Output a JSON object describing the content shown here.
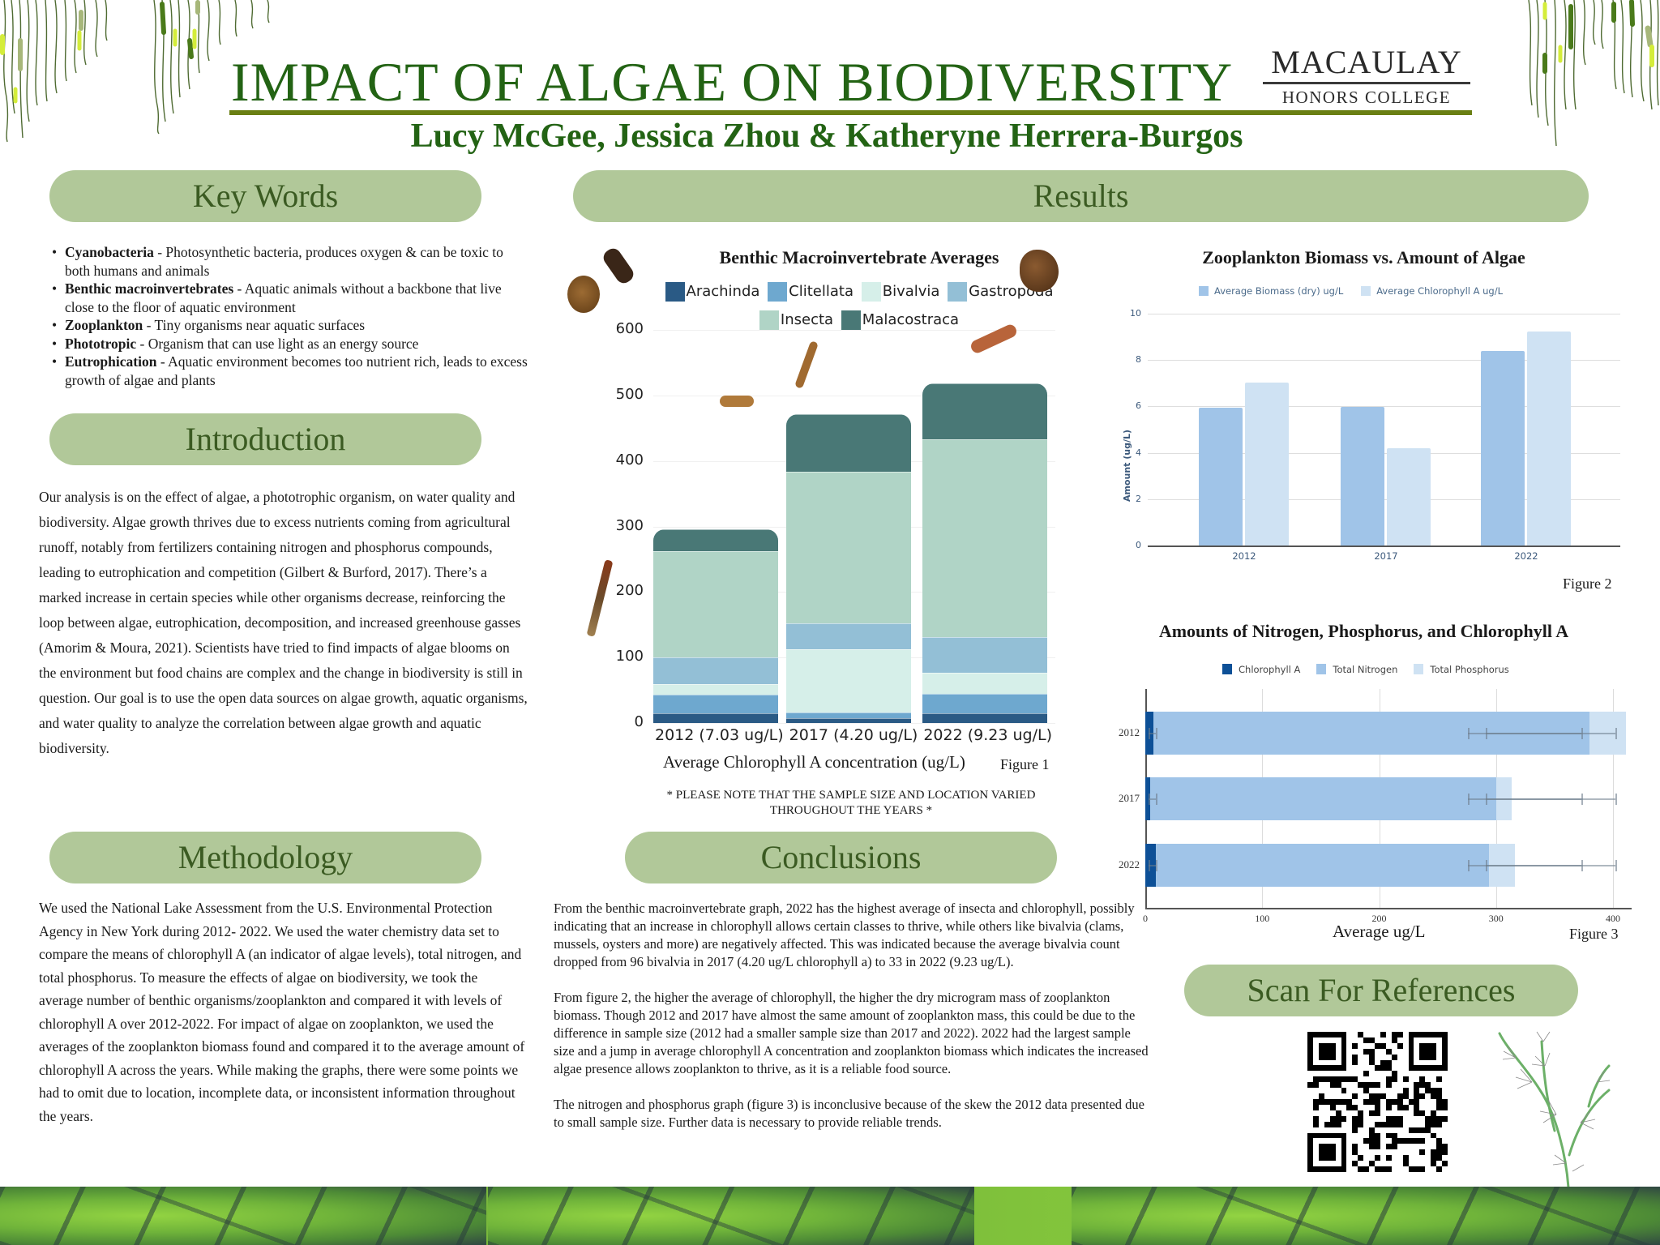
{
  "header": {
    "title": "IMPACT OF ALGAE ON BIODIVERSITY",
    "authors": "Lucy McGee, Jessica Zhou & Katheryne Herrera-Burgos",
    "logo_line1": "MACAULAY",
    "logo_line2": "HONORS COLLEGE"
  },
  "colors": {
    "title_green": "#236314",
    "rule_olive": "#6a7f13",
    "pill_bg": "#b1c899",
    "pill_text": "#3b5b22"
  },
  "sections": {
    "key_words": {
      "heading": "Key Words",
      "items": [
        {
          "term": "Cyanobacteria",
          "definition": " - Photosynthetic bacteria, produces oxygen & can be toxic to both humans and animals"
        },
        {
          "term": "Benthic macroinvertebrates",
          "definition": " - Aquatic animals without a backbone that live close to the floor of aquatic environment"
        },
        {
          "term": "Zooplankton",
          "definition": " - Tiny organisms near aquatic surfaces"
        },
        {
          "term": "Phototropic",
          "definition": " - Organism that can use light as an energy source"
        },
        {
          "term": "Eutrophication",
          "definition": " - Aquatic environment becomes too nutrient rich, leads to excess growth of algae and plants"
        }
      ]
    },
    "introduction": {
      "heading": "Introduction",
      "text": "Our analysis is on the effect of algae, a phototrophic organism, on water quality and biodiversity. Algae growth thrives due to excess nutrients coming from agricultural runoff, notably from fertilizers containing nitrogen and phosphorus compounds, leading to eutrophication and competition (Gilbert & Burford, 2017). There’s a marked increase in certain species while other organisms decrease, reinforcing the loop between algae, eutrophication, decomposition, and increased greenhouse gasses (Amorim & Moura, 2021). Scientists have tried to find impacts of algae blooms on the environment but food chains are complex and the change in biodiversity is still in question. Our goal is to use the open data sources on algae growth, aquatic organisms, and water quality to analyze the correlation between algae growth and aquatic biodiversity."
    },
    "methodology": {
      "heading": "Methodology",
      "text": "We used the National Lake Assessment from the U.S. Environmental Protection Agency in New York during 2012- 2022. We used the water chemistry data set to compare the means of chlorophyll A (an indicator of algae levels), total nitrogen, and total phosphorus. To measure the effects of algae on biodiversity, we took the average number of benthic organisms/zooplankton and compared it with levels of chlorophyll A over 2012-2022. For impact of algae on zooplankton, we used the averages of the zooplankton biomass found and compared it to the average amount of chlorophyll A across the years. While making the graphs, there were some points we had to omit due to location, incomplete data, or inconsistent information throughout the years."
    },
    "results": {
      "heading": "Results",
      "note": "* PLEASE NOTE THAT THE SAMPLE SIZE AND LOCATION VARIED THROUGHOUT THE YEARS *"
    },
    "conclusions": {
      "heading": "Conclusions",
      "paragraphs": [
        "From the benthic macroinvertebrate graph, 2022 has the highest average of insecta and chlorophyll, possibly indicating that an increase in chlorophyll allows certain classes to thrive, while others like bivalvia (clams, mussels, oysters and more) are negatively affected. This was indicated because the average bivalvia count dropped from 96 bivalvia in 2017 (4.20 ug/L chlorophyll a) to 33 in 2022 (9.23 ug/L).",
        "From figure 2, the higher the average of chlorophyll, the higher the dry microgram mass of zooplankton biomass. Though 2012 and 2017 have almost the same amount of zooplankton mass, this could be due to the difference in sample size (2012 had a smaller sample size than 2017 and 2022). 2022 had the largest sample size and a jump in average chlorophyll A concentration and zooplankton biomass which indicates the increased algae presence allows zooplankton to thrive, as it is a reliable food source.",
        "The nitrogen and phosphorus graph (figure 3) is inconclusive because of the skew the 2012 data presented due to small sample size. Further data is necessary to provide reliable trends."
      ]
    },
    "references": {
      "heading": "Scan For References",
      "qr_icon": "qr-code-icon"
    }
  },
  "chart_data": [
    {
      "type": "bar",
      "stacked": true,
      "title": "Benthic Macroinvertebrate Averages",
      "xlabel": "Average Chlorophyll A concentration (ug/L)",
      "ylabel": "",
      "figure_label": "Figure 1",
      "categories": [
        "2012 (7.03 ug/L)",
        "2017 (4.20 ug/L)",
        "2022 (9.23 ug/L)"
      ],
      "ylim": [
        0,
        600
      ],
      "yticks": [
        0,
        100,
        200,
        300,
        400,
        500,
        600
      ],
      "grid": true,
      "legend_position": "top",
      "series": [
        {
          "name": "Arachinda",
          "color": "#2a5a85",
          "values": [
            15,
            7,
            15
          ]
        },
        {
          "name": "Clitellata",
          "color": "#6ea8cf",
          "values": [
            28,
            9,
            29
          ]
        },
        {
          "name": "Bivalvia",
          "color": "#d6efe9",
          "values": [
            16,
            96,
            33
          ]
        },
        {
          "name": "Gastropoda",
          "color": "#93bfd6",
          "values": [
            41,
            40,
            54
          ]
        },
        {
          "name": "Insecta",
          "color": "#b0d4c6",
          "values": [
            162,
            232,
            302
          ]
        },
        {
          "name": "Malacostraca",
          "color": "#497876",
          "values": [
            34,
            87,
            85
          ]
        }
      ],
      "totals": [
        296,
        471,
        518
      ]
    },
    {
      "type": "bar",
      "title": "Zooplankton Biomass vs. Amount of Algae",
      "xlabel": "",
      "ylabel": "Amount (ug/L)",
      "figure_label": "Figure 2",
      "categories": [
        "2012",
        "2017",
        "2022"
      ],
      "ylim": [
        0,
        10
      ],
      "yticks": [
        0,
        2,
        4,
        6,
        8,
        10
      ],
      "grid": true,
      "legend_position": "top",
      "series": [
        {
          "name": "Average Biomass (dry) ug/L",
          "color": "#a0c4e8",
          "values": [
            5.93,
            5.99,
            8.4
          ]
        },
        {
          "name": "Average Chlorophyll A ug/L",
          "color": "#cfe2f3",
          "values": [
            7.03,
            4.2,
            9.23
          ]
        }
      ]
    },
    {
      "type": "bar",
      "orientation": "horizontal",
      "stacked": true,
      "title": "Amounts of Nitrogen, Phosphorus, and Chlorophyll A",
      "xlabel": "Average ug/L",
      "ylabel": "",
      "figure_label": "Figure 3",
      "categories": [
        "2012",
        "2017",
        "2022"
      ],
      "xlim": [
        0,
        420
      ],
      "xticks": [
        0,
        100,
        200,
        300,
        400
      ],
      "grid": true,
      "legend_position": "top",
      "series": [
        {
          "name": "Chlorophyll A",
          "color": "#0d5097",
          "values": [
            7,
            4,
            9
          ]
        },
        {
          "name": "Total Nitrogen",
          "color": "#a0c4e8",
          "values": [
            373,
            296,
            285
          ]
        },
        {
          "name": "Total Phosphorus",
          "color": "#cfe2f3",
          "values": [
            31,
            13,
            22
          ]
        }
      ],
      "error_bars": {
        "chlorophyll_range": [
          3,
          9
        ],
        "nitrogen_range": [
          276,
          373
        ],
        "phosphorus_range": [
          291,
          402
        ]
      }
    }
  ]
}
